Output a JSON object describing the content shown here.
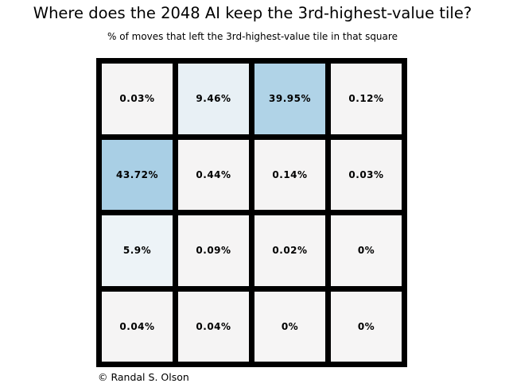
{
  "title": "Where does the 2048 AI keep the 3rd-highest-value tile?",
  "subtitle": "% of moves that left the 3rd-highest-value tile in that square",
  "credit": "© Randal S. Olson",
  "colors": {
    "background": "#ffffff",
    "grid_lines": "#000000",
    "text": "#000000",
    "high_value_fill": "#a9cfe5",
    "low_value_fill": "#f5f4f4"
  },
  "chart_data": {
    "type": "heatmap",
    "title": "Where does the 2048 AI keep the 3rd-highest-value tile?",
    "subtitle": "% of moves that left the 3rd-highest-value tile in that square",
    "rows": 4,
    "cols": 4,
    "unit": "%",
    "values": [
      [
        0.03,
        9.46,
        39.95,
        0.12
      ],
      [
        43.72,
        0.44,
        0.14,
        0.03
      ],
      [
        5.9,
        0.09,
        0.02,
        0
      ],
      [
        0.04,
        0.04,
        0,
        0
      ]
    ],
    "cell_labels": [
      [
        "0.03%",
        "9.46%",
        "39.95%",
        "0.12%"
      ],
      [
        "43.72%",
        "0.44%",
        "0.14%",
        "0.03%"
      ],
      [
        "5.9%",
        "0.09%",
        "0.02%",
        "0%"
      ],
      [
        "0.04%",
        "0.04%",
        "0%",
        "0%"
      ]
    ],
    "cell_colors": [
      [
        "#f5f4f4",
        "#e8f0f5",
        "#b0d3e7",
        "#f5f4f4"
      ],
      [
        "#a9cfe5",
        "#f5f4f4",
        "#f5f4f4",
        "#f5f4f4"
      ],
      [
        "#edf3f7",
        "#f5f4f4",
        "#f5f4f4",
        "#f6f5f5"
      ],
      [
        "#f5f4f4",
        "#f5f4f4",
        "#f6f5f5",
        "#f6f5f5"
      ]
    ],
    "legend": "none",
    "grid": "thick black borders between cells",
    "value_range": [
      0,
      43.72
    ]
  }
}
